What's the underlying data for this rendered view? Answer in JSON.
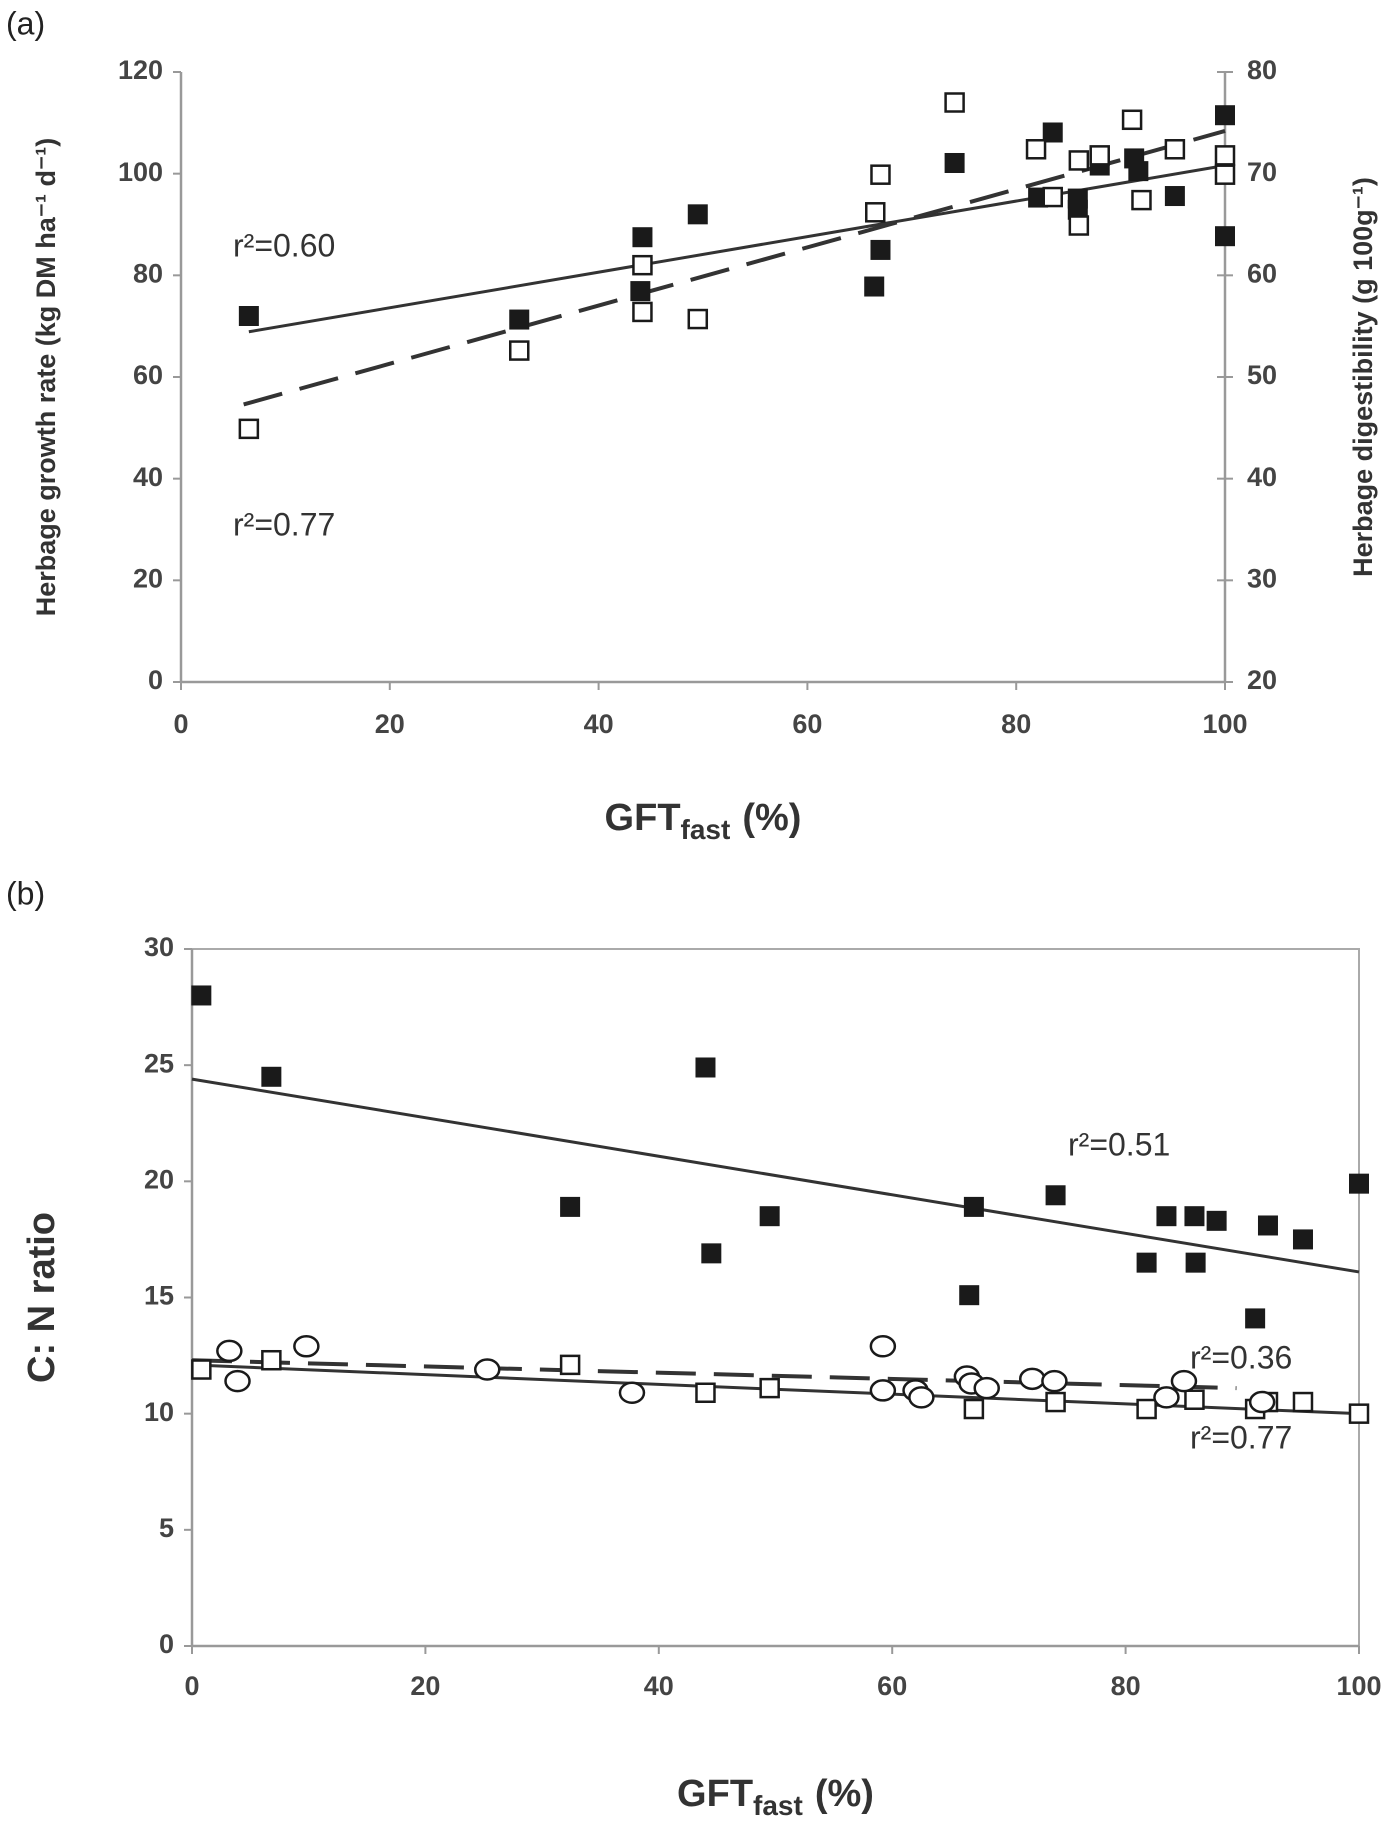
{
  "chart_data": [
    {
      "type": "scatter",
      "panel_label": "(a)",
      "xlabel": [
        "GFT",
        "fast",
        "(%)"
      ],
      "ylabel": "Herbage growth rate (kg DM ha⁻¹ d⁻¹)",
      "y2label": "Herbage digestibility (g 100g⁻¹)",
      "xlim": [
        0,
        100
      ],
      "xticks": [
        0,
        20,
        40,
        60,
        80,
        100
      ],
      "ylim": [
        0,
        120
      ],
      "yticks": [
        0,
        20,
        40,
        60,
        80,
        100,
        120
      ],
      "y2lim": [
        20,
        80
      ],
      "y2ticks": [
        20,
        30,
        40,
        50,
        60,
        70,
        80
      ],
      "series": [
        {
          "marker": "filled-square",
          "color": "#1a1a1a",
          "x": [
            6.5,
            32.4,
            44.2,
            44.0,
            49.5,
            67.0,
            66.4,
            74.1,
            83.5,
            82.1,
            85.9,
            85.9,
            88.0,
            91.3,
            91.7,
            95.2,
            100,
            100
          ],
          "values": [
            72.0,
            71.3,
            87.5,
            76.9,
            92.0,
            85.0,
            77.8,
            102.1,
            108.1,
            95.3,
            95.1,
            92.9,
            101.6,
            103.0,
            100.5,
            95.6,
            111.5,
            87.7
          ]
        },
        {
          "marker": "open-square",
          "color": "#1a1a1a",
          "axis": "y2",
          "x": [
            6.5,
            32.4,
            44.2,
            44.2,
            49.5,
            66.5,
            67.0,
            74.1,
            81.9,
            83.5,
            86.0,
            86.0,
            88.0,
            91.1,
            92.0,
            95.2,
            100,
            100
          ],
          "values": [
            44.9,
            52.6,
            61.0,
            56.4,
            55.7,
            66.2,
            69.9,
            77.0,
            72.4,
            67.7,
            71.3,
            64.9,
            71.8,
            75.3,
            67.4,
            72.4,
            71.8,
            69.9
          ]
        }
      ],
      "fits": [
        {
          "line": "solid",
          "color": "#333333",
          "x": [
            6.5,
            100
          ],
          "values": [
            68.9,
            101.6
          ]
        },
        {
          "line": "dashed",
          "color": "#333333",
          "axis": "y2",
          "x": [
            6,
            100
          ],
          "values": [
            47.3,
            74.2
          ]
        }
      ],
      "annotations": [
        "r²=0.60",
        "r²=0.77"
      ]
    },
    {
      "type": "scatter",
      "panel_label": "(b)",
      "xlabel": [
        "GFT",
        "fast",
        "(%)"
      ],
      "ylabel": "C: N ratio",
      "xlim": [
        0,
        100
      ],
      "xticks": [
        0,
        20,
        40,
        60,
        80,
        100
      ],
      "ylim": [
        0,
        30
      ],
      "yticks": [
        0,
        5,
        10,
        15,
        20,
        25,
        30
      ],
      "frame": true,
      "series": [
        {
          "marker": "filled-square",
          "color": "#1a1a1a",
          "x": [
            0.8,
            6.8,
            44.0,
            32.4,
            44.5,
            49.5,
            67.0,
            66.6,
            74.0,
            81.8,
            83.5,
            85.9,
            86.0,
            87.8,
            91.1,
            92.2,
            95.2,
            100
          ],
          "values": [
            28.0,
            24.5,
            24.9,
            18.9,
            16.9,
            18.5,
            18.9,
            15.1,
            19.4,
            16.5,
            18.5,
            18.5,
            16.5,
            18.3,
            14.1,
            18.1,
            17.5,
            19.9
          ]
        },
        {
          "marker": "open-square",
          "color": "#1a1a1a",
          "x": [
            0.8,
            6.8,
            32.4,
            44.0,
            49.5,
            67.0,
            74.0,
            81.8,
            85.9,
            91.1,
            92.2,
            95.2,
            100
          ],
          "values": [
            11.9,
            12.3,
            12.1,
            10.9,
            11.1,
            10.2,
            10.5,
            10.2,
            10.6,
            10.2,
            10.5,
            10.5,
            10.0
          ]
        },
        {
          "marker": "open-circle",
          "color": "#1a1a1a",
          "x": [
            3.2,
            3.9,
            9.8,
            25.3,
            37.7,
            59.2,
            59.2,
            62.0,
            62.5,
            66.4,
            66.8,
            68.1,
            72.0,
            73.9,
            83.5,
            85.0,
            91.7
          ],
          "values": [
            12.7,
            11.4,
            12.9,
            11.9,
            10.9,
            12.9,
            11.0,
            11.0,
            10.7,
            11.6,
            11.3,
            11.1,
            11.5,
            11.4,
            10.7,
            11.4,
            10.5
          ]
        }
      ],
      "fits": [
        {
          "line": "solid",
          "color": "#333333",
          "x": [
            0,
            100
          ],
          "values": [
            24.4,
            16.1
          ]
        },
        {
          "line": "dashed",
          "color": "#333333",
          "x": [
            0,
            89.5
          ],
          "values": [
            12.3,
            11.1
          ]
        },
        {
          "line": "solid",
          "color": "#333333",
          "x": [
            0,
            100
          ],
          "values": [
            12.1,
            10.0
          ]
        }
      ],
      "annotations": [
        "r²=0.51",
        "r²=0.36",
        "r²=0.77"
      ]
    }
  ]
}
